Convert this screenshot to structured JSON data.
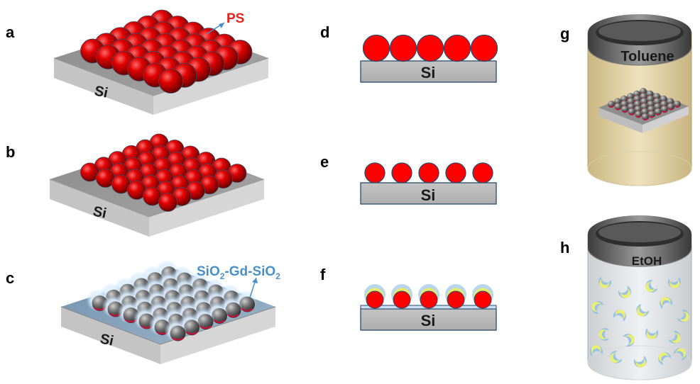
{
  "panels": {
    "a": "a",
    "b": "b",
    "c": "c",
    "d": "d",
    "e": "e",
    "f": "f",
    "g": "g",
    "h": "h"
  },
  "labels": {
    "ps": "PS",
    "si": "Si",
    "shell_prefix": "SiO",
    "shell_sub1": "2",
    "shell_mid": "-Gd-SiO",
    "shell_sub2": "2",
    "toluene": "Toluene",
    "etoh": "EtOH"
  },
  "colors": {
    "ps_red": "#e00000",
    "shell_blue": "#4a90c8",
    "substrate_gray": "#b8b8b8",
    "toluene_tint": "#e2cf96",
    "ps_label": "#e8231c"
  }
}
